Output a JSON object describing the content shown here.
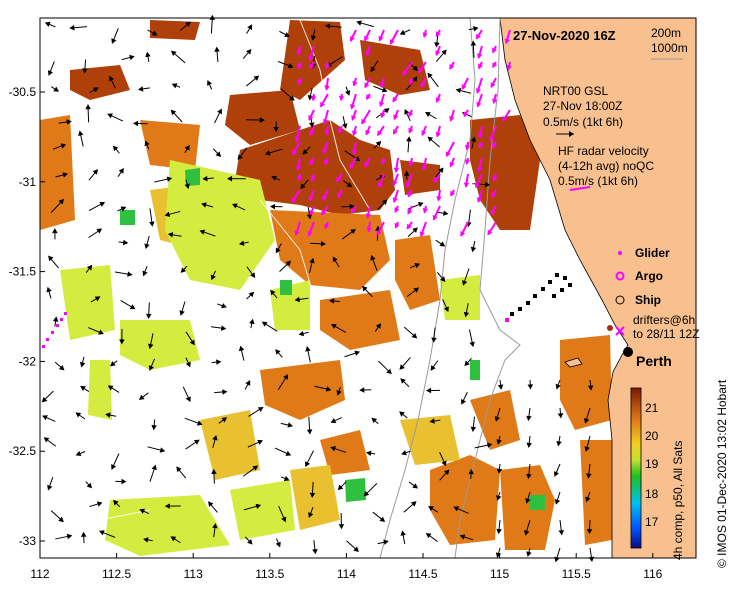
{
  "title": "27-Nov-2020 16Z",
  "depth_legend": [
    "200m",
    "1000m"
  ],
  "gsl": {
    "line1": "NRT00 GSL",
    "line2": "27-Nov 18:00Z",
    "line3": "0.5m/s (1kt 6h)"
  },
  "hf": {
    "line1": "HF radar velocity",
    "line2": "(4-12h avg) noQC",
    "line3": "0.5m/s (1kt 6h)"
  },
  "legend": {
    "glider": "Glider",
    "argo": "Argo",
    "ship": "Ship",
    "drifters1": "drifters@6h",
    "drifters2": "to 28/11 12Z"
  },
  "city": "Perth",
  "colorbar": {
    "ticks": [
      "21",
      "20",
      "19",
      "18",
      "17"
    ],
    "label": "4h comp, p50, All Sats"
  },
  "credit": "© IMOS 01-Dec-2020 13:02 Hobart",
  "x_ticks": [
    "112",
    "112.5",
    "113",
    "113.5",
    "114",
    "114.5",
    "115",
    "115.5",
    "116"
  ],
  "y_ticks": [
    "-30.5",
    "-31",
    "-31.5",
    "-32",
    "-32.5",
    "-33"
  ],
  "colors": {
    "land": "#f8c08e",
    "hot": "#b0400a",
    "warm": "#e07a18",
    "mid": "#e8c030",
    "cool": "#d4ec40",
    "cold": "#30c040",
    "hf_arrow": "#ff00ff"
  }
}
